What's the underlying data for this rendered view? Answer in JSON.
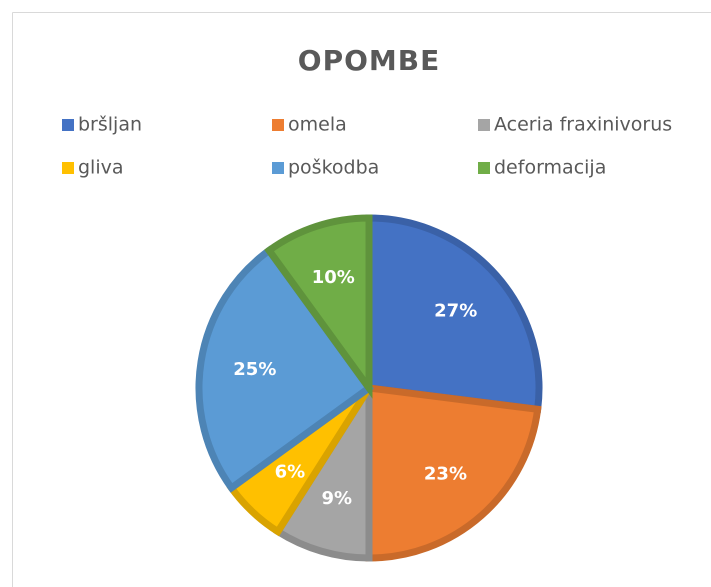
{
  "chart_data": {
    "type": "pie",
    "title": "OPOMBE",
    "categories": [
      "bršljan",
      "omela",
      "Aceria fraxinivorus",
      "gliva",
      "poškodba",
      "deformacija"
    ],
    "values": [
      27,
      23,
      9,
      6,
      25,
      10
    ],
    "value_labels": [
      "27%",
      "23%",
      "9%",
      "6%",
      "25%",
      "10%"
    ],
    "colors": [
      "#4472c4",
      "#ed7d31",
      "#a5a5a5",
      "#ffc000",
      "#5b9bd5",
      "#70ad47"
    ],
    "legend": "top"
  }
}
